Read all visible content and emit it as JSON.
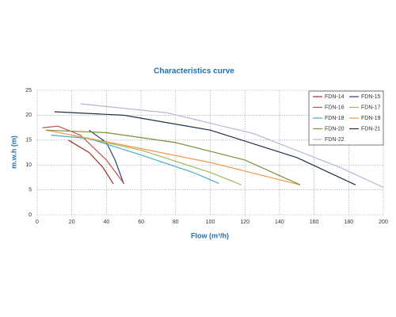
{
  "chart_data": {
    "type": "line",
    "title": "Characteristics curve",
    "x_label": "Flow (m³/h)",
    "y_label": "m.w.h (m)",
    "xlim": [
      0,
      200
    ],
    "ylim": [
      0,
      25
    ],
    "xticks": [
      0,
      20,
      40,
      60,
      80,
      100,
      120,
      140,
      160,
      180,
      200
    ],
    "yticks": [
      0,
      5,
      10,
      15,
      20,
      25
    ],
    "grid": true,
    "series": [
      {
        "name": "FDN-14",
        "color": "#a0322a",
        "x": [
          18,
          30,
          38,
          44
        ],
        "values": [
          15,
          12.5,
          9.5,
          6.2
        ]
      },
      {
        "name": "FDN-15",
        "color": "#2c3e73",
        "x": [
          30,
          40,
          45,
          50
        ],
        "values": [
          17,
          14.5,
          11,
          6.2
        ]
      },
      {
        "name": "FDN-16",
        "color": "#c0504d",
        "x": [
          3,
          12,
          25,
          40,
          50
        ],
        "values": [
          17.5,
          17.8,
          16,
          11,
          6.3
        ]
      },
      {
        "name": "FDN-17",
        "color": "#9bbb59",
        "x": [
          20,
          60,
          100,
          118
        ],
        "values": [
          16,
          13,
          8.5,
          6
        ]
      },
      {
        "name": "FDN-18",
        "color": "#4bacc6",
        "x": [
          8,
          30,
          60,
          90,
          105
        ],
        "values": [
          16,
          15.3,
          12,
          8.5,
          6.3
        ]
      },
      {
        "name": "FDN-19",
        "color": "#f79646",
        "x": [
          5,
          50,
          100,
          152
        ],
        "values": [
          17,
          14,
          10.5,
          6
        ]
      },
      {
        "name": "FDN-20",
        "color": "#77933c",
        "x": [
          5,
          40,
          80,
          120,
          152
        ],
        "values": [
          17,
          16.5,
          14.5,
          11,
          6
        ]
      },
      {
        "name": "FDN-21",
        "color": "#1f2f4a",
        "x": [
          10,
          50,
          100,
          150,
          184
        ],
        "values": [
          20.7,
          20,
          17,
          11.5,
          6
        ]
      },
      {
        "name": "FDN-22",
        "color": "#b4b4d9",
        "x": [
          25,
          75,
          125,
          175,
          200
        ],
        "values": [
          22.3,
          20.5,
          16.3,
          9.5,
          5.5
        ]
      }
    ]
  }
}
